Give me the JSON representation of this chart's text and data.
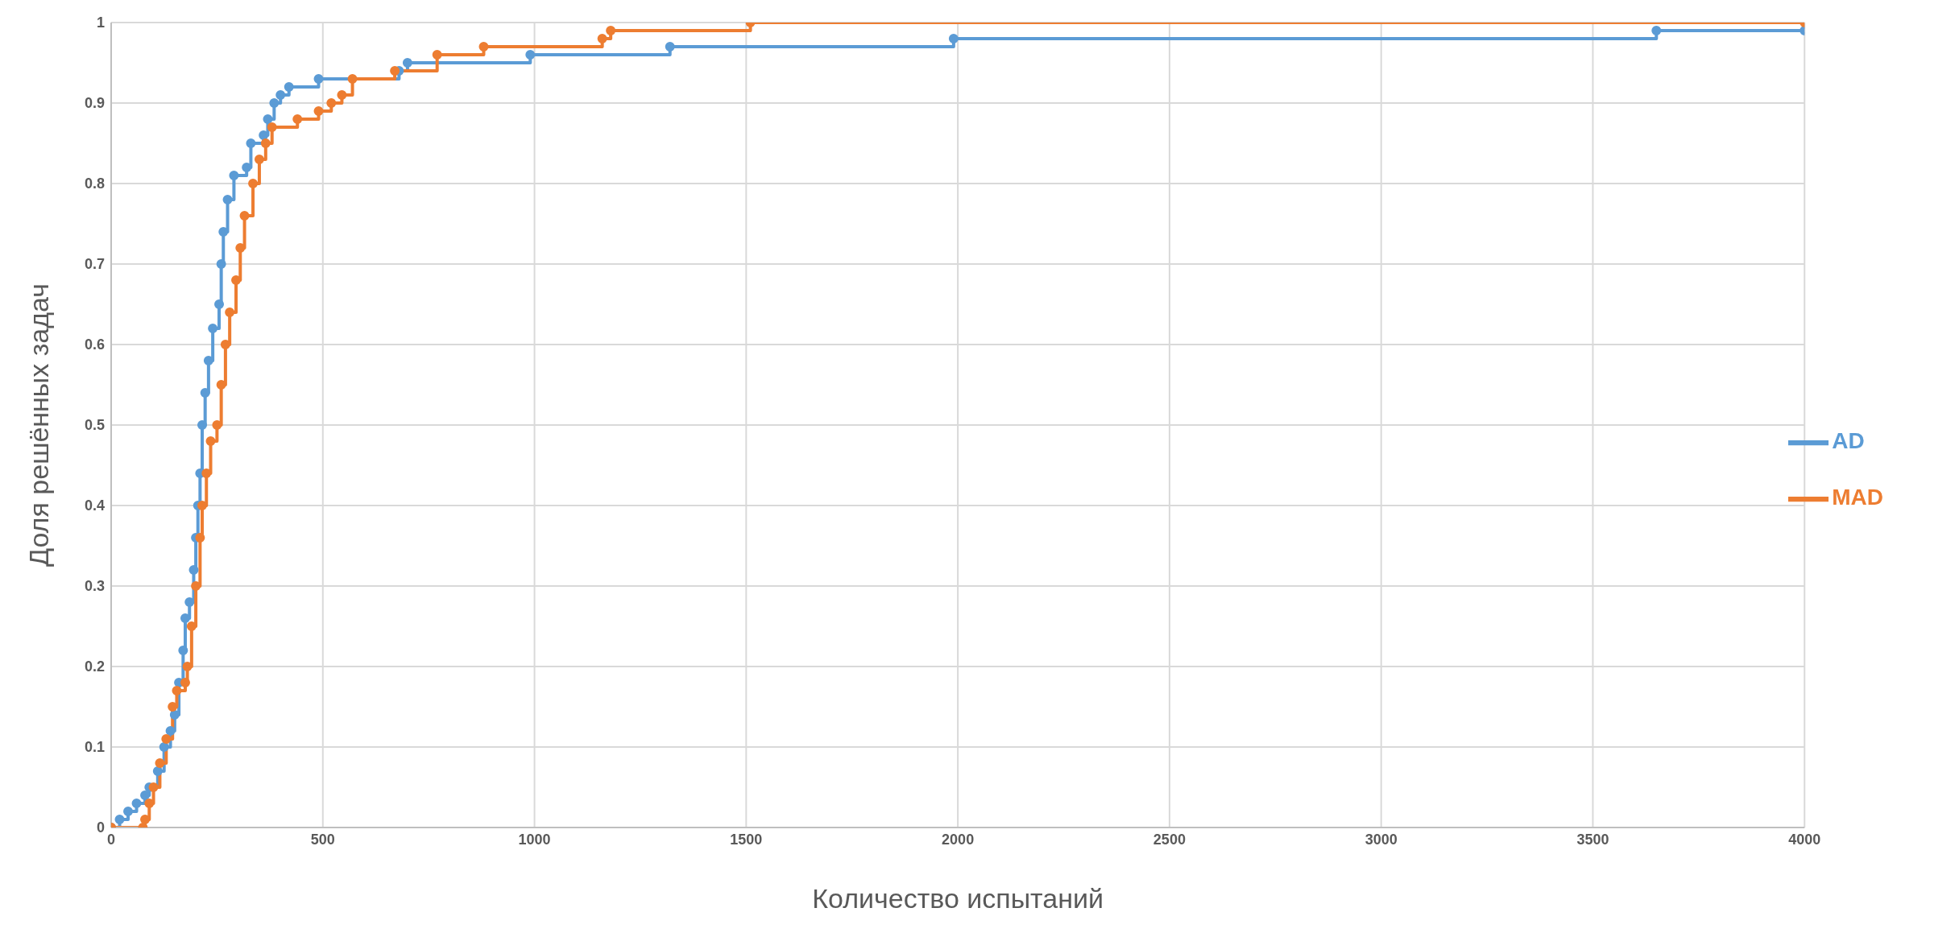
{
  "chart_data": {
    "type": "step",
    "xlabel": "Количество испытаний",
    "ylabel": "Доля решённых задач",
    "xlim": [
      0,
      4000
    ],
    "xticks": [
      0,
      500,
      1000,
      1500,
      2000,
      2500,
      3000,
      3500,
      4000
    ],
    "ylim": [
      0,
      1
    ],
    "yticks": [
      0,
      0.1,
      0.2,
      0.3,
      0.4,
      0.5,
      0.6,
      0.7,
      0.8,
      0.9,
      1
    ],
    "grid": true,
    "legend": "right",
    "marker": "circle",
    "line_style": "solid",
    "series": [
      {
        "name": "AD",
        "color": "#5b9bd5",
        "x": [
          0,
          20,
          40,
          60,
          80,
          90,
          110,
          125,
          140,
          150,
          160,
          170,
          175,
          185,
          195,
          200,
          205,
          210,
          215,
          222,
          230,
          240,
          255,
          260,
          265,
          275,
          290,
          320,
          330,
          360,
          370,
          385,
          400,
          420,
          490,
          680,
          700,
          990,
          1320,
          1990,
          3650,
          4000
        ],
        "values": [
          0,
          0.01,
          0.02,
          0.03,
          0.04,
          0.05,
          0.07,
          0.1,
          0.12,
          0.14,
          0.18,
          0.22,
          0.26,
          0.28,
          0.32,
          0.36,
          0.4,
          0.44,
          0.5,
          0.54,
          0.58,
          0.62,
          0.65,
          0.7,
          0.74,
          0.78,
          0.81,
          0.82,
          0.85,
          0.86,
          0.88,
          0.9,
          0.91,
          0.92,
          0.93,
          0.94,
          0.95,
          0.96,
          0.97,
          0.98,
          0.99,
          0.99
        ]
      },
      {
        "name": "MAD",
        "color": "#ed7d31",
        "x": [
          0,
          75,
          80,
          90,
          100,
          115,
          130,
          145,
          155,
          175,
          180,
          190,
          200,
          210,
          215,
          225,
          235,
          250,
          260,
          270,
          280,
          295,
          305,
          315,
          335,
          350,
          365,
          380,
          440,
          490,
          520,
          545,
          570,
          670,
          770,
          880,
          1160,
          1180,
          1510,
          4000
        ],
        "values": [
          0,
          0,
          0.01,
          0.03,
          0.05,
          0.08,
          0.11,
          0.15,
          0.17,
          0.18,
          0.2,
          0.25,
          0.3,
          0.36,
          0.4,
          0.44,
          0.48,
          0.5,
          0.55,
          0.6,
          0.64,
          0.68,
          0.72,
          0.76,
          0.8,
          0.83,
          0.85,
          0.87,
          0.88,
          0.89,
          0.9,
          0.91,
          0.93,
          0.94,
          0.96,
          0.97,
          0.98,
          0.99,
          1,
          1
        ]
      }
    ]
  }
}
